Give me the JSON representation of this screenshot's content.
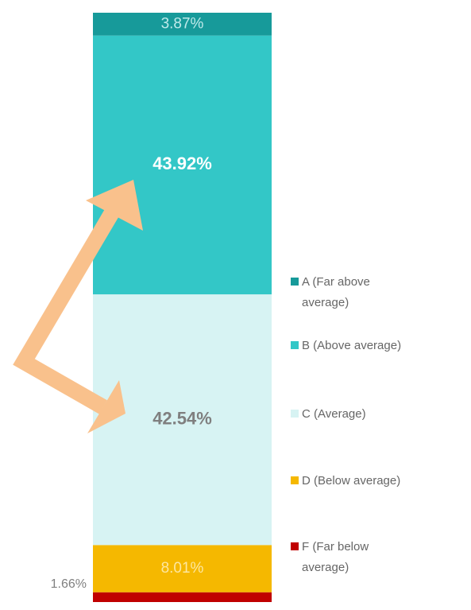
{
  "chart_data": {
    "type": "bar",
    "stacked": true,
    "ylim": [
      0,
      100
    ],
    "series": [
      {
        "name": "A (Far above average)",
        "color": "#179a9a",
        "values": [
          3.87
        ],
        "value_labels": [
          "3.87%"
        ]
      },
      {
        "name": "B (Above average)",
        "color": "#33c7c7",
        "values": [
          43.92
        ],
        "value_labels": [
          "43.92%"
        ]
      },
      {
        "name": "C (Average)",
        "color": "#d7f3f3",
        "values": [
          42.54
        ],
        "value_labels": [
          "42.54%"
        ]
      },
      {
        "name": "D (Below average)",
        "color": "#f5b800",
        "values": [
          8.01
        ],
        "value_labels": [
          "8.01%"
        ]
      },
      {
        "name": "F (Far below average)",
        "color": "#c00000",
        "values": [
          1.66
        ],
        "value_labels": [
          "1.66%"
        ]
      }
    ]
  }
}
